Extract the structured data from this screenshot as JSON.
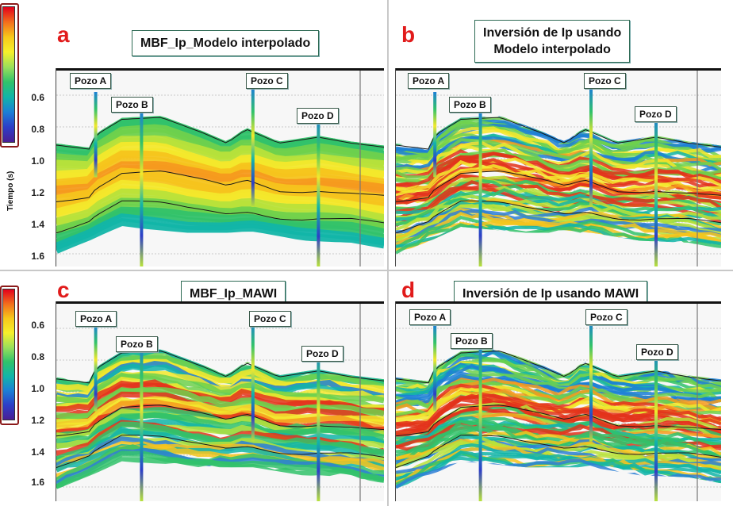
{
  "axis_title": "Tiempo (s)",
  "time_ticks": [
    "0.6",
    "0.8",
    "1.0",
    "1.2",
    "1.4",
    "1.6"
  ],
  "colorbar": {
    "colors": [
      "#e3001b",
      "#f36d1c",
      "#f7c81a",
      "#f6f02b",
      "#9be05a",
      "#31c26a",
      "#12b5a8",
      "#1c7fd6",
      "#2d3ec8",
      "#4a1e94"
    ]
  },
  "panels": [
    {
      "id": "a",
      "letter": "a",
      "title_lines": [
        "MBF_Ip_Modelo interpolado"
      ],
      "style": "smooth",
      "wells": [
        {
          "name": "Pozo A"
        },
        {
          "name": "Pozo B"
        },
        {
          "name": "Pozo C"
        },
        {
          "name": "Pozo D"
        }
      ]
    },
    {
      "id": "b",
      "letter": "b",
      "title_lines": [
        "Inversión de Ip usando",
        "Modelo interpolado"
      ],
      "style": "noisy",
      "wells": [
        {
          "name": "Pozo A"
        },
        {
          "name": "Pozo B"
        },
        {
          "name": "Pozo C"
        },
        {
          "name": "Pozo D"
        }
      ]
    },
    {
      "id": "c",
      "letter": "c",
      "title_lines": [
        "MBF_Ip_MAWI"
      ],
      "style": "medium",
      "wells": [
        {
          "name": "Pozo A"
        },
        {
          "name": "Pozo B"
        },
        {
          "name": "Pozo C"
        },
        {
          "name": "Pozo D"
        }
      ]
    },
    {
      "id": "d",
      "letter": "d",
      "title_lines": [
        "Inversión de Ip usando MAWI"
      ],
      "style": "noisy",
      "wells": [
        {
          "name": "Pozo A"
        },
        {
          "name": "Pozo B"
        },
        {
          "name": "Pozo C"
        },
        {
          "name": "Pozo D"
        }
      ]
    }
  ]
}
